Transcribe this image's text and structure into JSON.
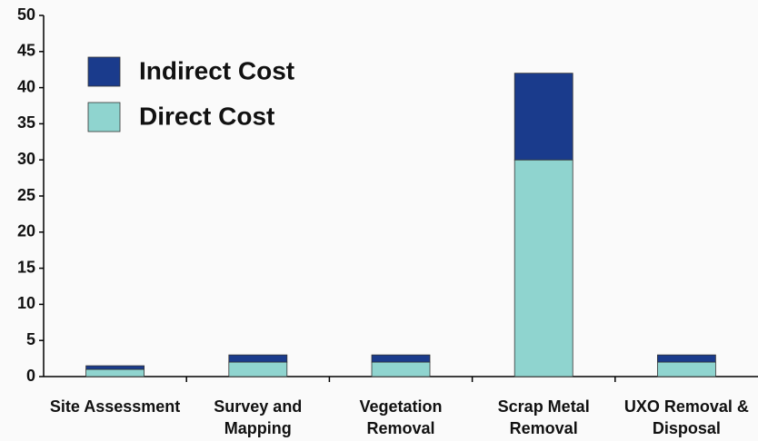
{
  "chart_data": {
    "type": "stacked-bar",
    "categories": [
      "Site Assessment",
      "Survey and Mapping",
      "Vegetation Removal",
      "Scrap Metal Removal",
      "UXO Removal & Disposal"
    ],
    "series": [
      {
        "name": "Direct Cost",
        "color": "#8fd4cf",
        "values": [
          1,
          2,
          2,
          30,
          2
        ]
      },
      {
        "name": "Indirect Cost",
        "color": "#1a3b8c",
        "values": [
          0.5,
          1,
          1,
          12,
          1
        ]
      }
    ],
    "ylim": [
      0,
      50
    ],
    "yticks": [
      0,
      5,
      10,
      15,
      20,
      25,
      30,
      35,
      40,
      45,
      50
    ],
    "legend": "upper-left"
  }
}
